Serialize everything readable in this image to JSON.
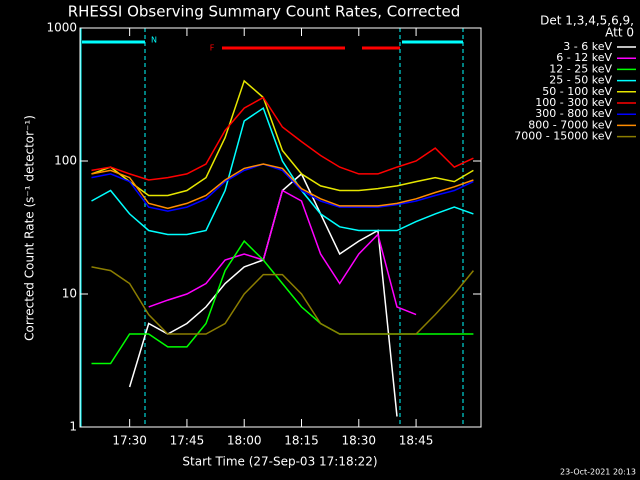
{
  "chart_data": {
    "type": "line",
    "title": "RHESSI Observing Summary Count Rates, Corrected",
    "xlabel": "Start Time (27-Sep-03 17:18:22)",
    "ylabel": "Corrected Count Rate (s⁻¹ detector⁻¹)",
    "legend_title": [
      "Det 1,3,4,5,6,9,",
      "Att 0"
    ],
    "timestamp": "23-Oct-2021 20:13",
    "annotations": [
      {
        "text": "N",
        "color": "#00ffff"
      },
      {
        "text": "F",
        "color": "#ff0000"
      }
    ],
    "log_y": true,
    "ylim": [
      1,
      1000
    ],
    "yticks": [
      1,
      10,
      100,
      1000
    ],
    "xlim": [
      1037,
      1142
    ],
    "xticks": [
      {
        "value": 1050,
        "label": "17:30"
      },
      {
        "value": 1065,
        "label": "17:45"
      },
      {
        "value": 1080,
        "label": "18:00"
      },
      {
        "value": 1095,
        "label": "18:15"
      },
      {
        "value": 1110,
        "label": "18:30"
      },
      {
        "value": 1125,
        "label": "18:45"
      }
    ],
    "x": [
      1040,
      1045,
      1050,
      1055,
      1060,
      1065,
      1070,
      1075,
      1080,
      1085,
      1090,
      1095,
      1100,
      1105,
      1110,
      1115,
      1120,
      1125,
      1130,
      1135,
      1140
    ],
    "series": [
      {
        "name": "3 - 6 keV",
        "color": "#ffffff",
        "values": [
          null,
          null,
          2,
          6,
          5,
          6,
          8,
          12,
          16,
          18,
          60,
          80,
          40,
          20,
          25,
          30,
          1.2,
          null,
          null,
          null,
          null
        ]
      },
      {
        "name": "6 - 12 keV",
        "color": "#ff00ff",
        "values": [
          null,
          null,
          null,
          8,
          9,
          10,
          12,
          18,
          20,
          18,
          60,
          50,
          20,
          12,
          20,
          28,
          8,
          7,
          null,
          null,
          null
        ]
      },
      {
        "name": "12 - 25 keV",
        "color": "#00ff00",
        "values": [
          3,
          3,
          5,
          5,
          4,
          4,
          6,
          15,
          25,
          18,
          12,
          8,
          6,
          5,
          5,
          5,
          5,
          5,
          5,
          5,
          5
        ]
      },
      {
        "name": "25 - 50 keV",
        "color": "#00ffff",
        "values": [
          50,
          60,
          40,
          30,
          28,
          28,
          30,
          60,
          200,
          250,
          100,
          60,
          40,
          32,
          30,
          30,
          30,
          35,
          40,
          45,
          40
        ]
      },
      {
        "name": "50 - 100 keV",
        "color": "#e6e600",
        "values": [
          80,
          90,
          70,
          55,
          55,
          60,
          75,
          150,
          400,
          300,
          120,
          80,
          65,
          60,
          60,
          62,
          65,
          70,
          75,
          70,
          85
        ]
      },
      {
        "name": "100 - 300 keV",
        "color": "#ff0000",
        "values": [
          85,
          90,
          80,
          72,
          75,
          80,
          95,
          170,
          250,
          300,
          180,
          140,
          110,
          90,
          80,
          80,
          90,
          100,
          125,
          90,
          105
        ]
      },
      {
        "name": "300 - 800 keV",
        "color": "#0000ff",
        "values": [
          75,
          80,
          70,
          45,
          42,
          45,
          52,
          70,
          85,
          95,
          85,
          60,
          50,
          45,
          45,
          45,
          47,
          50,
          55,
          60,
          70
        ]
      },
      {
        "name": "800 - 7000 keV",
        "color": "#ff8c00",
        "values": [
          80,
          85,
          75,
          48,
          44,
          48,
          55,
          72,
          88,
          95,
          88,
          62,
          52,
          46,
          46,
          46,
          48,
          52,
          58,
          64,
          72
        ]
      },
      {
        "name": "7000 - 15000 keV",
        "color": "#8b7d00",
        "values": [
          16,
          15,
          12,
          7,
          5,
          5,
          5,
          6,
          10,
          14,
          14,
          10,
          6,
          5,
          5,
          5,
          5,
          5,
          7,
          10,
          15
        ]
      }
    ]
  }
}
